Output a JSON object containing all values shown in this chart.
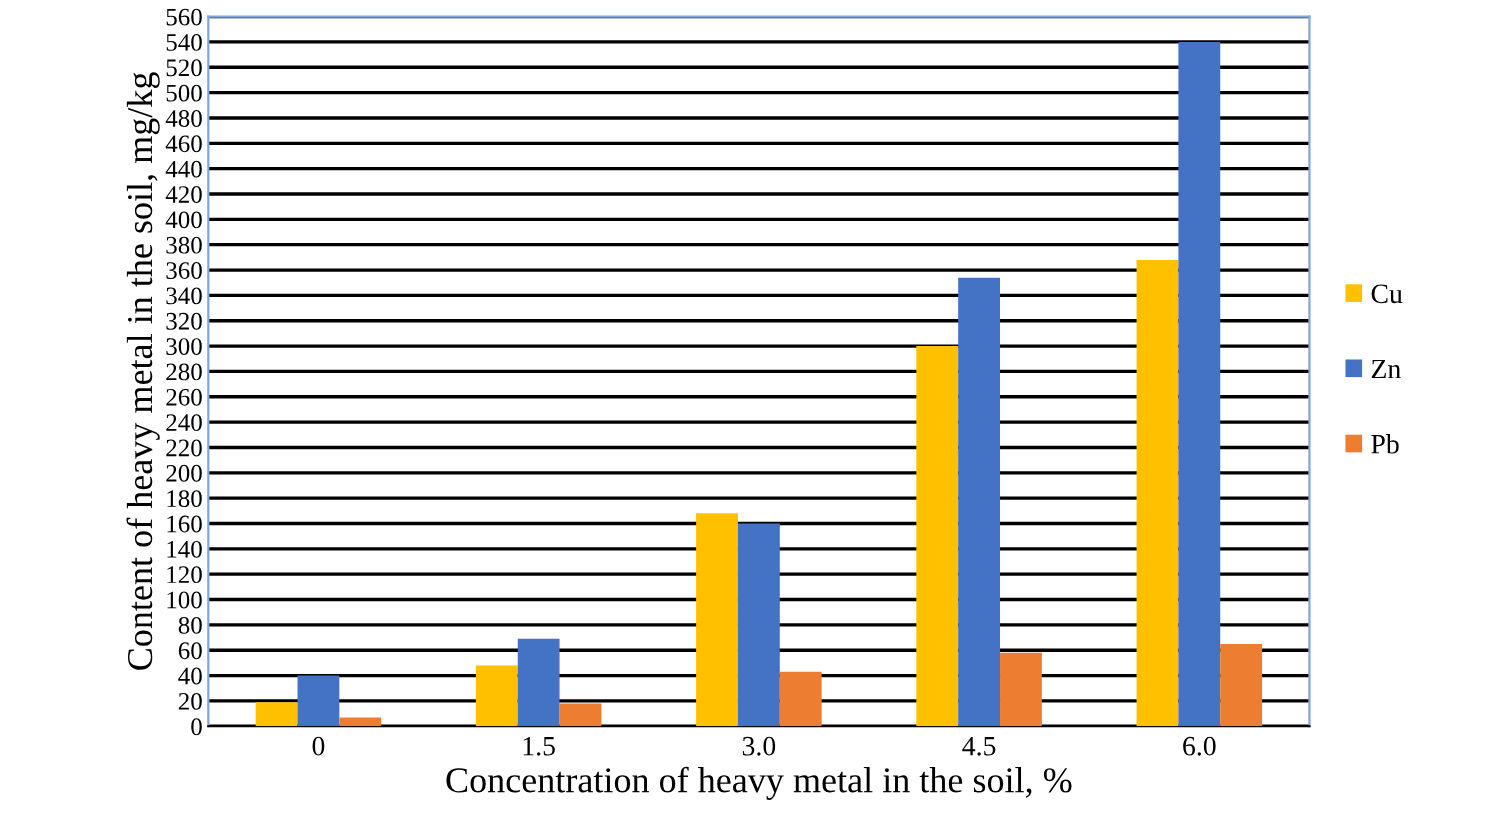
{
  "chart_data": {
    "type": "bar",
    "xlabel": "Concentration of heavy metal in the soil, %",
    "ylabel": "Content of heavy metal in the soil, mg/kg",
    "categories": [
      "0",
      "1.5",
      "3.0",
      "4.5",
      "6.0"
    ],
    "series": [
      {
        "name": "Cu",
        "color": "#ffc000",
        "values": [
          19,
          48,
          168,
          300,
          368
        ]
      },
      {
        "name": "Zn",
        "color": "#4472c4",
        "values": [
          40,
          69,
          160,
          354,
          540
        ]
      },
      {
        "name": "Pb",
        "color": "#ed7d31",
        "values": [
          7,
          18,
          43,
          58,
          65
        ]
      }
    ],
    "ylim": [
      0,
      560
    ],
    "yticks": [
      0,
      20,
      40,
      60,
      80,
      100,
      120,
      140,
      160,
      180,
      200,
      220,
      240,
      260,
      280,
      300,
      320,
      340,
      360,
      380,
      400,
      420,
      440,
      460,
      480,
      500,
      520,
      540,
      560
    ],
    "grid": "y",
    "legend": "right"
  }
}
